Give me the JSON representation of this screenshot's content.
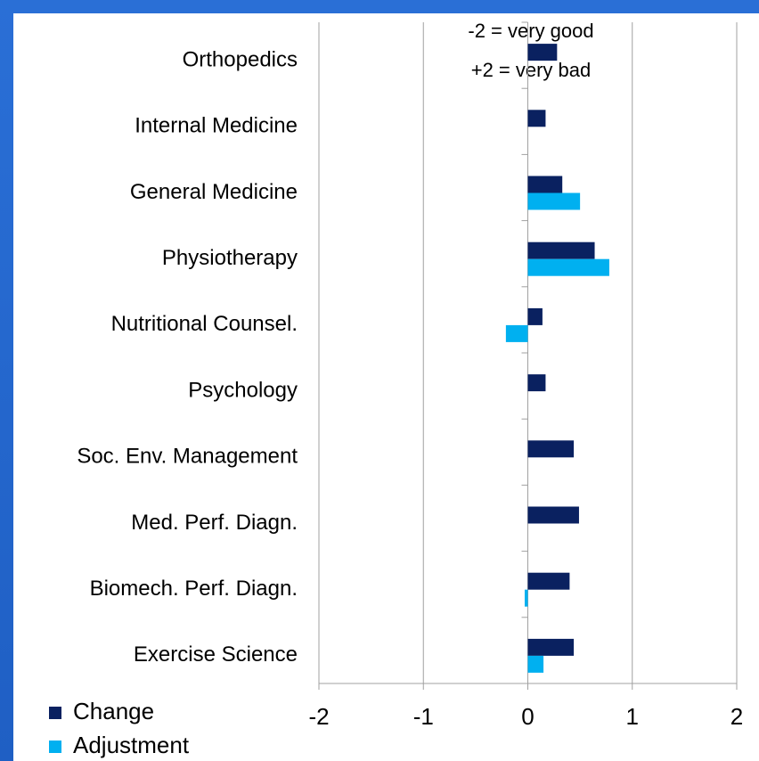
{
  "chart_data": {
    "type": "bar",
    "orientation": "horizontal",
    "annotations": [
      "-2 = very good",
      "+2 = very bad"
    ],
    "categories": [
      "Orthopedics",
      "Internal Medicine",
      "General Medicine",
      "Physiotherapy",
      "Nutritional Counsel.",
      "Psychology",
      "Soc. Env. Management",
      "Med. Perf. Diagn.",
      "Biomech. Perf. Diagn.",
      "Exercise Science"
    ],
    "series": [
      {
        "name": "Change",
        "color": "#0a2160",
        "values": [
          0.28,
          0.17,
          0.33,
          0.64,
          0.14,
          0.17,
          0.44,
          0.49,
          0.4,
          0.44
        ]
      },
      {
        "name": "Adjustment",
        "color": "#00b0f0",
        "values": [
          null,
          null,
          0.5,
          0.78,
          -0.21,
          null,
          null,
          null,
          -0.03,
          0.15
        ]
      }
    ],
    "xlim": [
      -2,
      2
    ],
    "xticks": [
      -2,
      -1,
      0,
      1,
      2
    ],
    "grid": true,
    "legend": "bottom-left"
  }
}
